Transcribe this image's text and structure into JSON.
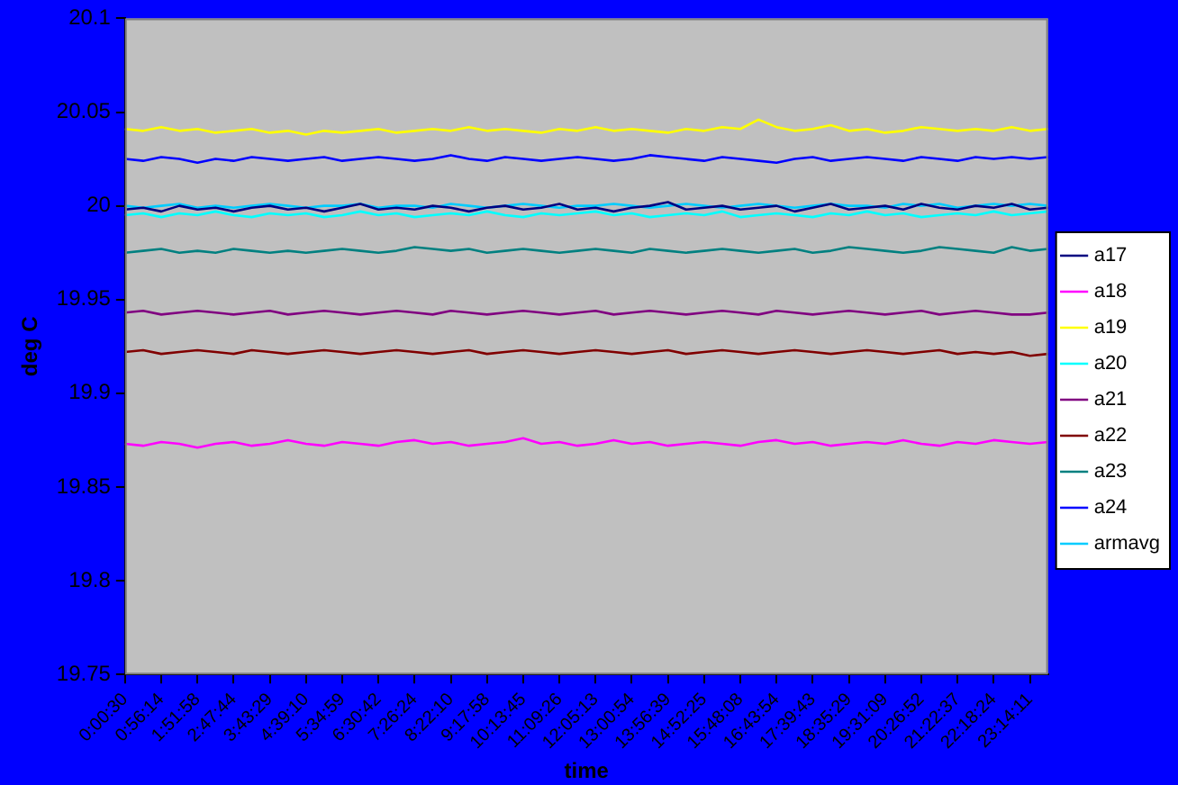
{
  "chart_data": {
    "type": "line",
    "xlabel": "time",
    "ylabel": "deg C",
    "categories": [
      "0:00:30",
      null,
      "0:56:14",
      null,
      "1:51:58",
      null,
      "2:47:44",
      null,
      "3:43:29",
      null,
      "4:39:10",
      null,
      "5:34:59",
      null,
      "6:30:42",
      null,
      "7:26:24",
      null,
      "8:22:10",
      null,
      "9:17:58",
      null,
      "10:13:45",
      null,
      "11:09:26",
      null,
      "12:05:13",
      null,
      "13:00:54",
      null,
      "13:56:39",
      null,
      "14:52:25",
      null,
      "15:48:08",
      null,
      "16:43:54",
      null,
      "17:39:43",
      null,
      "18:35:29",
      null,
      "19:31:09",
      null,
      "20:26:52",
      null,
      "21:22:37",
      null,
      "22:18:24",
      null,
      "23:14:11",
      null
    ],
    "series": [
      {
        "name": "a17",
        "color": "#000080",
        "values": [
          19.998,
          19.999,
          19.997,
          20.0,
          19.998,
          19.999,
          19.997,
          19.999,
          20.0,
          19.998,
          19.999,
          19.997,
          19.999,
          20.001,
          19.998,
          19.999,
          19.998,
          20.0,
          19.999,
          19.997,
          19.999,
          20.0,
          19.998,
          19.999,
          20.001,
          19.998,
          19.999,
          19.997,
          19.999,
          20.0,
          20.002,
          19.998,
          19.999,
          20.0,
          19.998,
          19.999,
          20.0,
          19.997,
          19.999,
          20.001,
          19.998,
          19.999,
          20.0,
          19.998,
          20.001,
          19.999,
          19.998,
          20.0,
          19.999,
          20.001,
          19.998,
          19.999
        ]
      },
      {
        "name": "a18",
        "color": "#ff00ff",
        "values": [
          19.873,
          19.872,
          19.874,
          19.873,
          19.871,
          19.873,
          19.874,
          19.872,
          19.873,
          19.875,
          19.873,
          19.872,
          19.874,
          19.873,
          19.872,
          19.874,
          19.875,
          19.873,
          19.874,
          19.872,
          19.873,
          19.874,
          19.876,
          19.873,
          19.874,
          19.872,
          19.873,
          19.875,
          19.873,
          19.874,
          19.872,
          19.873,
          19.874,
          19.873,
          19.872,
          19.874,
          19.875,
          19.873,
          19.874,
          19.872,
          19.873,
          19.874,
          19.873,
          19.875,
          19.873,
          19.872,
          19.874,
          19.873,
          19.875,
          19.874,
          19.873,
          19.874
        ]
      },
      {
        "name": "a19",
        "color": "#ffff00",
        "values": [
          20.041,
          20.04,
          20.042,
          20.04,
          20.041,
          20.039,
          20.04,
          20.041,
          20.039,
          20.04,
          20.038,
          20.04,
          20.039,
          20.04,
          20.041,
          20.039,
          20.04,
          20.041,
          20.04,
          20.042,
          20.04,
          20.041,
          20.04,
          20.039,
          20.041,
          20.04,
          20.042,
          20.04,
          20.041,
          20.04,
          20.039,
          20.041,
          20.04,
          20.042,
          20.041,
          20.046,
          20.042,
          20.04,
          20.041,
          20.043,
          20.04,
          20.041,
          20.039,
          20.04,
          20.042,
          20.041,
          20.04,
          20.041,
          20.04,
          20.042,
          20.04,
          20.041
        ]
      },
      {
        "name": "a20",
        "color": "#00ffff",
        "values": [
          19.995,
          19.996,
          19.994,
          19.996,
          19.995,
          19.997,
          19.995,
          19.994,
          19.996,
          19.995,
          19.996,
          19.994,
          19.995,
          19.997,
          19.995,
          19.996,
          19.994,
          19.995,
          19.996,
          19.995,
          19.997,
          19.995,
          19.994,
          19.996,
          19.995,
          19.996,
          19.997,
          19.995,
          19.996,
          19.994,
          19.995,
          19.996,
          19.995,
          19.997,
          19.994,
          19.995,
          19.996,
          19.995,
          19.994,
          19.996,
          19.995,
          19.997,
          19.995,
          19.996,
          19.994,
          19.995,
          19.996,
          19.995,
          19.997,
          19.995,
          19.996,
          19.997
        ]
      },
      {
        "name": "a21",
        "color": "#800080",
        "values": [
          19.943,
          19.944,
          19.942,
          19.943,
          19.944,
          19.943,
          19.942,
          19.943,
          19.944,
          19.942,
          19.943,
          19.944,
          19.943,
          19.942,
          19.943,
          19.944,
          19.943,
          19.942,
          19.944,
          19.943,
          19.942,
          19.943,
          19.944,
          19.943,
          19.942,
          19.943,
          19.944,
          19.942,
          19.943,
          19.944,
          19.943,
          19.942,
          19.943,
          19.944,
          19.943,
          19.942,
          19.944,
          19.943,
          19.942,
          19.943,
          19.944,
          19.943,
          19.942,
          19.943,
          19.944,
          19.942,
          19.943,
          19.944,
          19.943,
          19.942,
          19.942,
          19.943
        ]
      },
      {
        "name": "a22",
        "color": "#800000",
        "values": [
          19.922,
          19.923,
          19.921,
          19.922,
          19.923,
          19.922,
          19.921,
          19.923,
          19.922,
          19.921,
          19.922,
          19.923,
          19.922,
          19.921,
          19.922,
          19.923,
          19.922,
          19.921,
          19.922,
          19.923,
          19.921,
          19.922,
          19.923,
          19.922,
          19.921,
          19.922,
          19.923,
          19.922,
          19.921,
          19.922,
          19.923,
          19.921,
          19.922,
          19.923,
          19.922,
          19.921,
          19.922,
          19.923,
          19.922,
          19.921,
          19.922,
          19.923,
          19.922,
          19.921,
          19.922,
          19.923,
          19.921,
          19.922,
          19.921,
          19.922,
          19.92,
          19.921
        ]
      },
      {
        "name": "a23",
        "color": "#008080",
        "values": [
          19.975,
          19.976,
          19.977,
          19.975,
          19.976,
          19.975,
          19.977,
          19.976,
          19.975,
          19.976,
          19.975,
          19.976,
          19.977,
          19.976,
          19.975,
          19.976,
          19.978,
          19.977,
          19.976,
          19.977,
          19.975,
          19.976,
          19.977,
          19.976,
          19.975,
          19.976,
          19.977,
          19.976,
          19.975,
          19.977,
          19.976,
          19.975,
          19.976,
          19.977,
          19.976,
          19.975,
          19.976,
          19.977,
          19.975,
          19.976,
          19.978,
          19.977,
          19.976,
          19.975,
          19.976,
          19.978,
          19.977,
          19.976,
          19.975,
          19.978,
          19.976,
          19.977
        ]
      },
      {
        "name": "a24",
        "color": "#0000ff",
        "values": [
          20.025,
          20.024,
          20.026,
          20.025,
          20.023,
          20.025,
          20.024,
          20.026,
          20.025,
          20.024,
          20.025,
          20.026,
          20.024,
          20.025,
          20.026,
          20.025,
          20.024,
          20.025,
          20.027,
          20.025,
          20.024,
          20.026,
          20.025,
          20.024,
          20.025,
          20.026,
          20.025,
          20.024,
          20.025,
          20.027,
          20.026,
          20.025,
          20.024,
          20.026,
          20.025,
          20.024,
          20.023,
          20.025,
          20.026,
          20.024,
          20.025,
          20.026,
          20.025,
          20.024,
          20.026,
          20.025,
          20.024,
          20.026,
          20.025,
          20.026,
          20.025,
          20.026
        ]
      },
      {
        "name": "armavg",
        "color": "#00ccff",
        "values": [
          20.0,
          19.999,
          20.0,
          20.001,
          19.999,
          20.0,
          19.999,
          20.0,
          20.001,
          20.0,
          19.999,
          20.0,
          20.0,
          20.001,
          19.999,
          20.0,
          20.0,
          19.999,
          20.001,
          20.0,
          19.999,
          20.0,
          20.001,
          20.0,
          19.999,
          20.0,
          20.0,
          20.001,
          20.0,
          19.999,
          20.0,
          20.001,
          20.0,
          19.999,
          20.0,
          20.001,
          20.0,
          19.999,
          20.0,
          20.001,
          20.0,
          20.0,
          19.999,
          20.001,
          20.0,
          20.001,
          19.999,
          20.0,
          20.001,
          20.0,
          20.001,
          20.0
        ]
      }
    ],
    "ylim": [
      19.75,
      20.1
    ],
    "yticks": [
      19.75,
      19.8,
      19.85,
      19.9,
      19.95,
      20,
      20.05,
      20.1
    ],
    "grid": false,
    "legend": "right",
    "marker": "none",
    "line_style": "solid"
  }
}
